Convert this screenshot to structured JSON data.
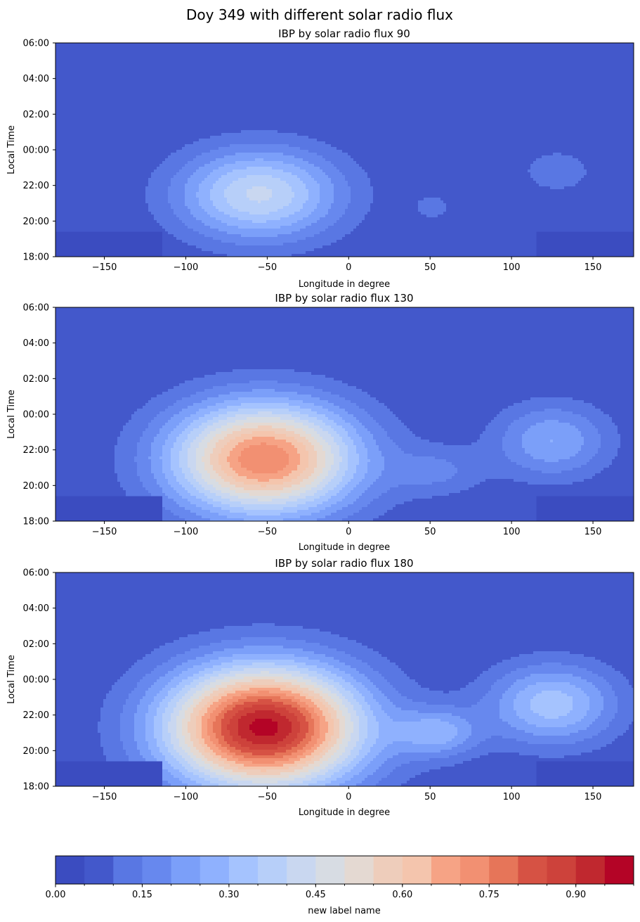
{
  "suptitle": "Doy 349 with different solar radio flux",
  "chart_data": [
    {
      "type": "contourf",
      "title": "IBP by solar radio flux 90",
      "xlabel": "Longitude in degree",
      "ylabel": "Local Time",
      "xlim": [
        -180,
        175
      ],
      "xticks": [
        -150,
        -100,
        -50,
        0,
        50,
        100,
        150
      ],
      "xtick_labels": [
        "−150",
        "−100",
        "−50",
        "0",
        "50",
        "100",
        "150"
      ],
      "ylim_hours": [
        18,
        30
      ],
      "yticks": [
        18,
        20,
        22,
        24,
        26,
        28,
        30
      ],
      "ytick_labels": [
        "18:00",
        "20:00",
        "22:00",
        "00:00",
        "02:00",
        "04:00",
        "06:00"
      ],
      "features": [
        {
          "lon": -55,
          "hour": 21.5,
          "amp": 0.36,
          "sx": 35,
          "sy": 1.8
        },
        {
          "lon": 128,
          "hour": 22.8,
          "amp": 0.08,
          "sx": 18,
          "sy": 1.0
        },
        {
          "lon": 52,
          "hour": 20.8,
          "amp": 0.06,
          "sx": 12,
          "sy": 0.8
        }
      ]
    },
    {
      "type": "contourf",
      "title": "IBP by solar radio flux 130",
      "xlabel": "Longitude in degree",
      "ylabel": "Local Time",
      "xlim": [
        -180,
        175
      ],
      "xticks": [
        -150,
        -100,
        -50,
        0,
        50,
        100,
        150
      ],
      "xtick_labels": [
        "−150",
        "−100",
        "−50",
        "0",
        "50",
        "100",
        "150"
      ],
      "ylim_hours": [
        18,
        30
      ],
      "yticks": [
        18,
        20,
        22,
        24,
        26,
        28,
        30
      ],
      "ytick_labels": [
        "18:00",
        "20:00",
        "22:00",
        "00:00",
        "02:00",
        "04:00",
        "06:00"
      ],
      "features": [
        {
          "lon": -52,
          "hour": 21.5,
          "amp": 0.7,
          "sx": 40,
          "sy": 2.2
        },
        {
          "lon": 125,
          "hour": 22.5,
          "amp": 0.2,
          "sx": 25,
          "sy": 1.5
        },
        {
          "lon": 55,
          "hour": 20.8,
          "amp": 0.1,
          "sx": 20,
          "sy": 1.0
        }
      ]
    },
    {
      "type": "contourf",
      "title": "IBP by solar radio flux 180",
      "xlabel": "Longitude in degree",
      "ylabel": "Local Time",
      "xlim": [
        -180,
        175
      ],
      "xticks": [
        -150,
        -100,
        -50,
        0,
        50,
        100,
        150
      ],
      "xtick_labels": [
        "−150",
        "−100",
        "−50",
        "0",
        "50",
        "100",
        "150"
      ],
      "ylim_hours": [
        18,
        30
      ],
      "yticks": [
        18,
        20,
        22,
        24,
        26,
        28,
        30
      ],
      "ytick_labels": [
        "18:00",
        "20:00",
        "22:00",
        "00:00",
        "02:00",
        "04:00",
        "06:00"
      ],
      "features": [
        {
          "lon": -52,
          "hour": 21.3,
          "amp": 0.92,
          "sx": 42,
          "sy": 2.4
        },
        {
          "lon": 125,
          "hour": 22.6,
          "amp": 0.28,
          "sx": 28,
          "sy": 1.6
        },
        {
          "lon": 55,
          "hour": 21.0,
          "amp": 0.2,
          "sx": 18,
          "sy": 1.0
        }
      ]
    }
  ],
  "colorbar": {
    "label": "new label name",
    "levels": 20,
    "vmin": 0.0,
    "vmax": 1.0,
    "tick_values": [
      0.0,
      0.15,
      0.3,
      0.45,
      0.6,
      0.75,
      0.9
    ],
    "tick_labels": [
      "0.00",
      "0.15",
      "0.30",
      "0.45",
      "0.60",
      "0.75",
      "0.90"
    ],
    "colors": [
      "#3b4cc0",
      "#4358cb",
      "#5977e3",
      "#6788ee",
      "#7b9ff9",
      "#8fb1fe",
      "#a5c3fe",
      "#b7cff9",
      "#c9d7f0",
      "#d7dce3",
      "#e4d9d2",
      "#eecdbb",
      "#f4c5ad",
      "#f6a385",
      "#f29072",
      "#e67559",
      "#d65244",
      "#cd423b",
      "#c0282f",
      "#b40426"
    ]
  }
}
